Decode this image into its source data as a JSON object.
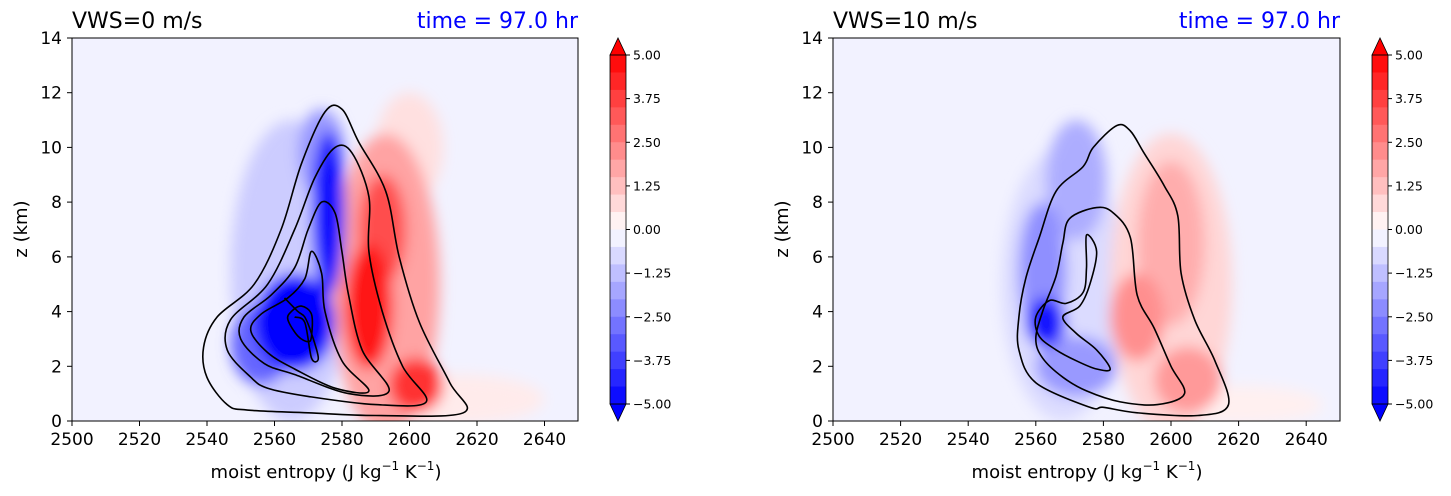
{
  "chart_data": [
    {
      "type": "contour",
      "title_left": "VWS=0 m/s",
      "title_right": "time = 97.0 hr",
      "title_right_color": "#0000ff",
      "xlabel": "moist entropy (J kg",
      "xlabel_exp1": "−1",
      "xlabel_mid": " K",
      "xlabel_exp2": "−1",
      "xlabel_end": ")",
      "ylabel": "z (km)",
      "xlim": [
        2500,
        2650
      ],
      "ylim": [
        0,
        14
      ],
      "xticks": [
        "2500",
        "2520",
        "2540",
        "2560",
        "2580",
        "2600",
        "2620",
        "2640"
      ],
      "yticks": [
        "0",
        "2",
        "4",
        "6",
        "8",
        "10",
        "12",
        "14"
      ],
      "colorbar": {
        "range": [
          -5,
          5
        ],
        "ticks": [
          "5.00",
          "3.75",
          "2.50",
          "1.25",
          "0.00",
          "−1.25",
          "−2.50",
          "−3.75",
          "−5.00"
        ],
        "cmap": "bwr",
        "extend": "both"
      },
      "filled_blobs": [
        {
          "x": 2566,
          "y": 3.6,
          "rx": 12,
          "ry": 1.8,
          "value": -5.0
        },
        {
          "x": 2576,
          "y": 7.6,
          "rx": 5,
          "ry": 3.0,
          "value": -4.8
        },
        {
          "x": 2556,
          "y": 2.8,
          "rx": 9,
          "ry": 1.5,
          "value": -3.0
        },
        {
          "x": 2574,
          "y": 9.8,
          "rx": 7,
          "ry": 1.6,
          "value": -2.0
        },
        {
          "x": 2565,
          "y": 5.5,
          "rx": 18,
          "ry": 5.5,
          "value": -1.0
        },
        {
          "x": 2588,
          "y": 4.2,
          "rx": 7,
          "ry": 2.3,
          "value": 4.5
        },
        {
          "x": 2592,
          "y": 7.0,
          "rx": 7,
          "ry": 2.0,
          "value": 3.5
        },
        {
          "x": 2602,
          "y": 1.3,
          "rx": 8,
          "ry": 1.0,
          "value": 4.0
        },
        {
          "x": 2593,
          "y": 5.0,
          "rx": 16,
          "ry": 5.5,
          "value": 1.8
        },
        {
          "x": 2600,
          "y": 10.0,
          "rx": 10,
          "ry": 2.0,
          "value": 0.6
        },
        {
          "x": 2615,
          "y": 0.8,
          "rx": 25,
          "ry": 0.9,
          "value": 0.4
        }
      ],
      "contours": [
        {
          "points": [
            [
              2546,
              0.6
            ],
            [
              2540,
              1.6
            ],
            [
              2539,
              2.7
            ],
            [
              2543,
              3.8
            ],
            [
              2554,
              5.0
            ],
            [
              2562,
              7.0
            ],
            [
              2568,
              9.4
            ],
            [
              2575,
              11.3
            ],
            [
              2580,
              11.4
            ],
            [
              2585,
              10.2
            ],
            [
              2593,
              8.4
            ],
            [
              2597,
              6.0
            ],
            [
              2603,
              3.6
            ],
            [
              2612,
              1.4
            ],
            [
              2616,
              0.3
            ],
            [
              2590,
              0.2
            ],
            [
              2570,
              0.3
            ],
            [
              2552,
              0.4
            ]
          ],
          "closed": true
        },
        {
          "points": [
            [
              2553,
              1.6
            ],
            [
              2546,
              2.6
            ],
            [
              2547,
              3.7
            ],
            [
              2558,
              5.0
            ],
            [
              2566,
              7.0
            ],
            [
              2572,
              8.9
            ],
            [
              2578,
              10.0
            ],
            [
              2583,
              9.8
            ],
            [
              2588,
              8.2
            ],
            [
              2588,
              6.2
            ],
            [
              2592,
              4.0
            ],
            [
              2598,
              2.0
            ],
            [
              2605,
              0.7
            ],
            [
              2590,
              0.6
            ],
            [
              2570,
              0.9
            ],
            [
              2558,
              1.2
            ]
          ],
          "closed": true
        },
        {
          "points": [
            [
              2557,
              2.1
            ],
            [
              2550,
              3.0
            ],
            [
              2551,
              3.8
            ],
            [
              2559,
              4.6
            ],
            [
              2566,
              5.6
            ],
            [
              2570,
              7.0
            ],
            [
              2574,
              8.0
            ],
            [
              2578,
              7.6
            ],
            [
              2580,
              6.2
            ],
            [
              2582,
              4.6
            ],
            [
              2586,
              2.6
            ],
            [
              2594,
              1.1
            ],
            [
              2582,
              1.0
            ],
            [
              2566,
              1.7
            ]
          ],
          "closed": true
        },
        {
          "points": [
            [
              2558,
              2.5
            ],
            [
              2553,
              3.3
            ],
            [
              2556,
              3.9
            ],
            [
              2564,
              4.5
            ],
            [
              2569,
              5.2
            ],
            [
              2571,
              6.2
            ],
            [
              2574,
              5.4
            ],
            [
              2575,
              4.0
            ],
            [
              2580,
              2.2
            ],
            [
              2588,
              1.1
            ],
            [
              2578,
              1.2
            ],
            [
              2566,
              1.9
            ]
          ],
          "closed": true
        },
        {
          "points": [
            [
              2563,
              4.5
            ],
            [
              2567,
              4.0
            ],
            [
              2569,
              3.8
            ],
            [
              2571,
              3.2
            ],
            [
              2573,
              2.3
            ],
            [
              2571,
              2.3
            ],
            [
              2569,
              3.6
            ],
            [
              2566,
              3.8
            ]
          ],
          "closed": false
        },
        {
          "points": [
            [
              2564,
              3.7
            ],
            [
              2565,
              4.0
            ],
            [
              2568,
              4.2
            ],
            [
              2571,
              3.9
            ],
            [
              2571,
              3.1
            ],
            [
              2570,
              2.9
            ],
            [
              2567,
              3.1
            ]
          ],
          "closed": true
        }
      ]
    },
    {
      "type": "contour",
      "title_left": "VWS=10 m/s",
      "title_right": "time = 97.0 hr",
      "title_right_color": "#0000ff",
      "xlabel": "moist entropy (J kg",
      "xlabel_exp1": "−1",
      "xlabel_mid": " K",
      "xlabel_exp2": "−1",
      "xlabel_end": ")",
      "ylabel": "z (km)",
      "xlim": [
        2500,
        2650
      ],
      "ylim": [
        0,
        14
      ],
      "xticks": [
        "2500",
        "2520",
        "2540",
        "2560",
        "2580",
        "2600",
        "2620",
        "2640"
      ],
      "yticks": [
        "0",
        "2",
        "4",
        "6",
        "8",
        "10",
        "12",
        "14"
      ],
      "colorbar": {
        "range": [
          -5,
          5
        ],
        "ticks": [
          "5.00",
          "3.75",
          "2.50",
          "1.25",
          "0.00",
          "−1.25",
          "−2.50",
          "−3.75",
          "−5.00"
        ],
        "cmap": "bwr",
        "extend": "both"
      },
      "filled_blobs": [
        {
          "x": 2563,
          "y": 3.6,
          "rx": 6,
          "ry": 0.9,
          "value": -4.6
        },
        {
          "x": 2562,
          "y": 5.5,
          "rx": 7,
          "ry": 2.5,
          "value": -2.2
        },
        {
          "x": 2572,
          "y": 2.0,
          "rx": 12,
          "ry": 1.1,
          "value": -2.0
        },
        {
          "x": 2572,
          "y": 8.8,
          "rx": 9,
          "ry": 2.2,
          "value": -1.6
        },
        {
          "x": 2568,
          "y": 5.0,
          "rx": 18,
          "ry": 5.0,
          "value": -0.7
        },
        {
          "x": 2590,
          "y": 3.8,
          "rx": 8,
          "ry": 1.6,
          "value": 2.2
        },
        {
          "x": 2600,
          "y": 6.5,
          "rx": 10,
          "ry": 3.0,
          "value": 1.6
        },
        {
          "x": 2605,
          "y": 1.5,
          "rx": 10,
          "ry": 1.2,
          "value": 2.0
        },
        {
          "x": 2600,
          "y": 5.0,
          "rx": 18,
          "ry": 5.5,
          "value": 0.8
        },
        {
          "x": 2620,
          "y": 0.6,
          "rx": 25,
          "ry": 0.7,
          "value": 0.3
        }
      ],
      "contours": [
        {
          "points": [
            [
              2576,
              0.5
            ],
            [
              2560,
              1.4
            ],
            [
              2555,
              2.6
            ],
            [
              2555,
              3.8
            ],
            [
              2557,
              5.2
            ],
            [
              2561,
              6.7
            ],
            [
              2566,
              8.4
            ],
            [
              2574,
              9.3
            ],
            [
              2577,
              10.0
            ],
            [
              2584,
              10.8
            ],
            [
              2588,
              10.6
            ],
            [
              2592,
              9.8
            ],
            [
              2598,
              8.6
            ],
            [
              2602,
              7.5
            ],
            [
              2603,
              5.4
            ],
            [
              2607,
              3.7
            ],
            [
              2613,
              2.2
            ],
            [
              2617,
              0.6
            ],
            [
              2608,
              0.2
            ],
            [
              2590,
              0.3
            ],
            [
              2580,
              0.5
            ]
          ],
          "closed": true
        },
        {
          "points": [
            [
              2568,
              1.6
            ],
            [
              2562,
              2.3
            ],
            [
              2560,
              3.0
            ],
            [
              2562,
              4.0
            ],
            [
              2566,
              5.3
            ],
            [
              2568,
              6.5
            ],
            [
              2570,
              7.4
            ],
            [
              2578,
              7.8
            ],
            [
              2583,
              7.6
            ],
            [
              2588,
              6.7
            ],
            [
              2590,
              4.6
            ],
            [
              2595,
              3.4
            ],
            [
              2600,
              2.0
            ],
            [
              2604,
              1.0
            ],
            [
              2596,
              0.6
            ],
            [
              2585,
              0.7
            ],
            [
              2575,
              1.1
            ]
          ],
          "closed": true
        },
        {
          "points": [
            [
              2568,
              3.8
            ],
            [
              2573,
              4.2
            ],
            [
              2576,
              5.0
            ],
            [
              2578,
              6.2
            ],
            [
              2575,
              6.8
            ],
            [
              2575,
              5.6
            ],
            [
              2574,
              4.7
            ],
            [
              2569,
              4.3
            ],
            [
              2564,
              4.4
            ],
            [
              2560,
              3.8
            ],
            [
              2561,
              3.1
            ],
            [
              2566,
              2.6
            ],
            [
              2572,
              2.2
            ],
            [
              2578,
              1.9
            ],
            [
              2582,
              1.9
            ],
            [
              2578,
              2.6
            ],
            [
              2572,
              3.2
            ]
          ],
          "closed": true
        }
      ]
    }
  ]
}
